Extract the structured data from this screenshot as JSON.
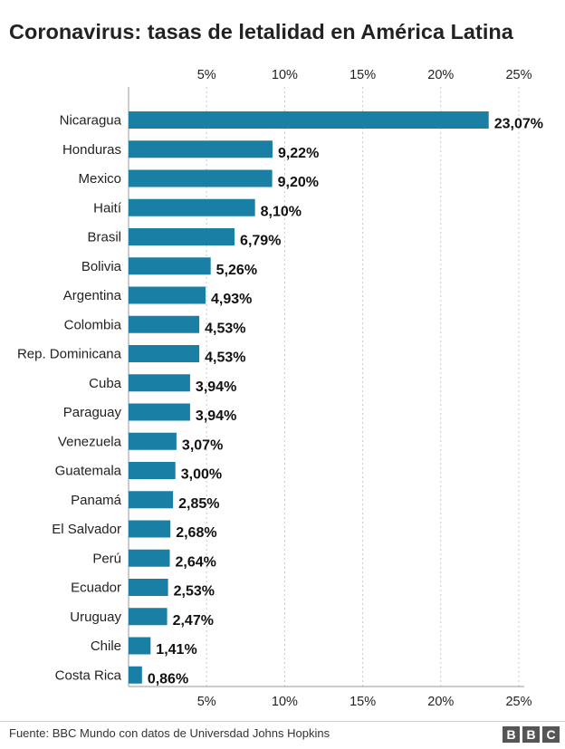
{
  "title": "Coronavirus: tasas de letalidad en América Latina",
  "source": "Fuente: BBC Mundo con datos de Universdad Johns Hopkins",
  "logo_letters": [
    "B",
    "B",
    "C"
  ],
  "colors": {
    "bar": "#1a7fa4",
    "grid": "#c8c8c8",
    "axis": "#999999",
    "text": "#222222"
  },
  "chart_data": {
    "type": "bar",
    "orientation": "horizontal",
    "title": "Coronavirus: tasas de letalidad en América Latina",
    "categories": [
      "Nicaragua",
      "Honduras",
      "Mexico",
      "Haití",
      "Brasil",
      "Bolivia",
      "Argentina",
      "Colombia",
      "Rep. Dominicana",
      "Cuba",
      "Paraguay",
      "Venezuela",
      "Guatemala",
      "Panamá",
      "El Salvador",
      "Perú",
      "Ecuador",
      "Uruguay",
      "Chile",
      "Costa Rica"
    ],
    "values": [
      23.07,
      9.22,
      9.2,
      8.1,
      6.79,
      5.26,
      4.93,
      4.53,
      4.53,
      3.94,
      3.94,
      3.07,
      3.0,
      2.85,
      2.68,
      2.64,
      2.53,
      2.47,
      1.41,
      0.86
    ],
    "value_labels": [
      "23,07%",
      "9,22%",
      "9,20%",
      "8,10%",
      "6,79%",
      "5,26%",
      "4,93%",
      "4,53%",
      "4,53%",
      "3,94%",
      "3,94%",
      "3,07%",
      "3,00%",
      "2,85%",
      "2,68%",
      "2,64%",
      "2,53%",
      "2,47%",
      "1,41%",
      "0,86%"
    ],
    "xlim": [
      0,
      25
    ],
    "ticks": [
      5,
      10,
      15,
      20,
      25
    ],
    "tick_labels": [
      "5%",
      "10%",
      "15%",
      "20%",
      "25%"
    ],
    "xlabel": "",
    "ylabel": "",
    "grid": true,
    "axis_labels_position": "top-and-bottom"
  }
}
